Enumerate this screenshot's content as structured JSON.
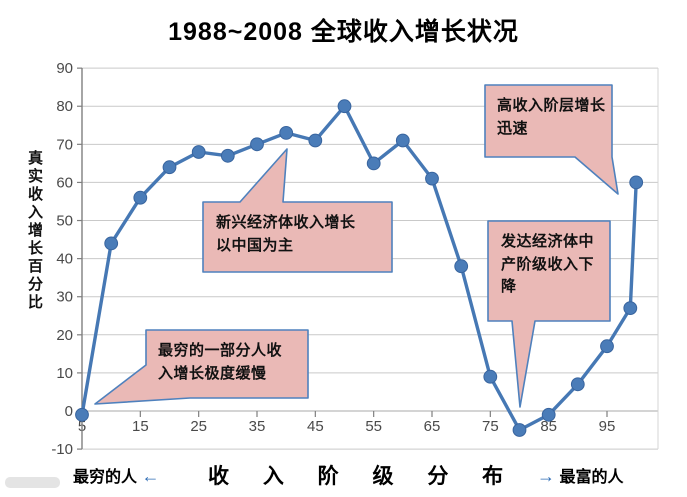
{
  "title": "1988~2008 全球收入增长状况",
  "y_axis": {
    "label": "真实收入增长百分比",
    "ticks": [
      90,
      80,
      70,
      60,
      50,
      40,
      30,
      20,
      10,
      0,
      -10
    ]
  },
  "x_axis": {
    "ticks": [
      5,
      15,
      25,
      35,
      45,
      55,
      65,
      75,
      85,
      95
    ]
  },
  "footer": {
    "left_label": "最穷的人",
    "left_arrow": "←",
    "center_label": "收 入 阶 级 分 布",
    "right_arrow": "→",
    "right_label": "最富的人"
  },
  "callouts": [
    {
      "id": "poorest",
      "text": "最穷的一部分人收入增长极度缓慢"
    },
    {
      "id": "emerging",
      "text": "新兴经济体收入增长以中国为主"
    },
    {
      "id": "high-income",
      "text": "高收入阶层增长迅速"
    },
    {
      "id": "developed-middle",
      "text": "发达经济体中产阶级收入下降"
    }
  ],
  "colors": {
    "line": "#4678b4",
    "marker_fill": "#4a7cb8",
    "marker_stroke": "#38649e",
    "grid": "#c9c9c9",
    "zero_line": "#aaaaaa",
    "axis": "#7f7f7f",
    "tick_text": "#4a4a4a",
    "callout_fill": "#eab9b6",
    "callout_border": "#4f81bd",
    "arrow": "#2f6db5"
  },
  "chart_data": {
    "type": "line",
    "title": "1988~2008 全球收入增长状况",
    "xlabel": "收入阶级分布 (最穷的人 → 最富的人)",
    "ylabel": "真实收入增长百分比",
    "x": [
      5,
      10,
      15,
      20,
      25,
      30,
      35,
      40,
      45,
      50,
      55,
      60,
      65,
      70,
      75,
      80,
      85,
      90,
      95,
      99,
      100
    ],
    "values": [
      -1,
      44,
      56,
      64,
      68,
      67,
      70,
      73,
      71,
      80,
      65,
      71,
      61,
      38,
      9,
      -5,
      -1,
      7,
      17,
      27,
      60
    ],
    "xlim": [
      5,
      100
    ],
    "ylim": [
      -10,
      90
    ],
    "grid": true,
    "legend": false,
    "marker": "circle",
    "annotations": [
      "最穷的一部分人收入增长极度缓慢",
      "新兴经济体收入增长以中国为主",
      "高收入阶层增长迅速",
      "发达经济体中产阶级收入下降"
    ]
  }
}
